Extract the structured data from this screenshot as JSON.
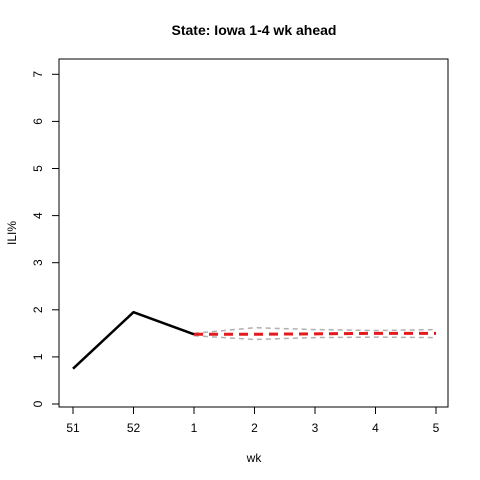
{
  "chart_data": {
    "type": "line",
    "title": "State: Iowa 1-4 wk ahead",
    "xlabel": "wk",
    "ylabel": "ILI%",
    "x_ticks": [
      "51",
      "52",
      "1",
      "2",
      "3",
      "4",
      "5"
    ],
    "y_ticks": [
      "0",
      "1",
      "2",
      "3",
      "4",
      "5",
      "6",
      "7"
    ],
    "ylim": [
      0,
      7
    ],
    "grid": false,
    "series": [
      {
        "role": "observed",
        "color": "#000000",
        "style": "solid",
        "x": [
          "51",
          "52",
          "1"
        ],
        "y": [
          0.75,
          1.95,
          1.48
        ]
      },
      {
        "role": "forecast",
        "color": "#e41a1c",
        "style": "dashed",
        "x": [
          "1",
          "2",
          "3",
          "4",
          "5"
        ],
        "y": [
          1.48,
          1.48,
          1.49,
          1.5,
          1.5
        ]
      },
      {
        "role": "upper-interval",
        "color": "#b0b0b0",
        "style": "dashed",
        "x": [
          "1",
          "2",
          "3",
          "4",
          "5"
        ],
        "y": [
          1.5,
          1.62,
          1.58,
          1.56,
          1.58
        ]
      },
      {
        "role": "lower-interval",
        "color": "#b0b0b0",
        "style": "dashed",
        "x": [
          "1",
          "2",
          "3",
          "4",
          "5"
        ],
        "y": [
          1.45,
          1.37,
          1.41,
          1.42,
          1.41
        ]
      }
    ]
  }
}
